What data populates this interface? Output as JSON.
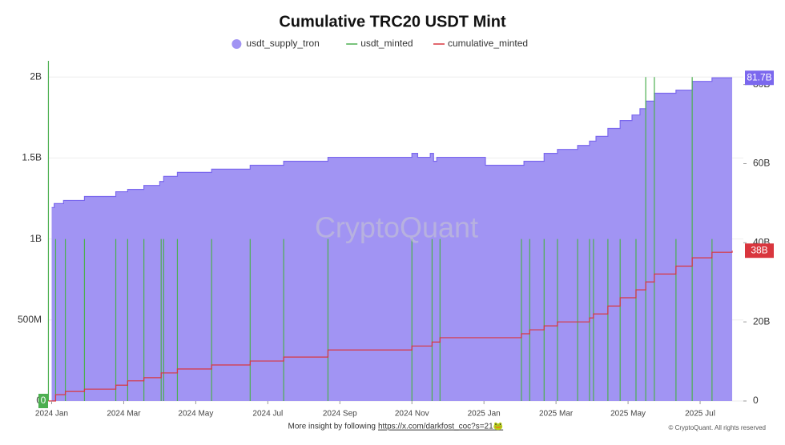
{
  "chart_data": {
    "type": "line",
    "title": "Cumulative TRC20 USDT Mint",
    "watermark": "CryptoQuant",
    "footer_text": "More insight by following",
    "footer_link": "https://x.com/darkfost_coc?s=21🐸",
    "copyright": "© CryptoQuant. All rights reserved",
    "step": "after",
    "grid": true,
    "xlim": [
      -0.1,
      19.2
    ],
    "xticks": [
      {
        "value": 0,
        "label": "2024 Jan"
      },
      {
        "value": 2,
        "label": "2024 Mar"
      },
      {
        "value": 4,
        "label": "2024 May"
      },
      {
        "value": 6,
        "label": "2024 Jul"
      },
      {
        "value": 8,
        "label": "2024 Sep"
      },
      {
        "value": 10,
        "label": "2024 Nov"
      },
      {
        "value": 12,
        "label": "2025 Jan"
      },
      {
        "value": 14,
        "label": "2025 Mar"
      },
      {
        "value": 16,
        "label": "2025 May"
      },
      {
        "value": 18,
        "label": "2025 Jul"
      }
    ],
    "ylim": [
      0,
      2.1
    ],
    "yticks": [
      0,
      {
        "value": 0.5,
        "label": "500M"
      },
      {
        "value": 1,
        "label": "1B"
      },
      {
        "value": 1.5,
        "label": "1.5B"
      },
      {
        "value": 2,
        "label": "2B"
      }
    ],
    "y2lim": [
      0,
      86
    ],
    "y2ticks": [
      0,
      {
        "value": 20,
        "label": "20B"
      },
      {
        "value": 40,
        "label": "40B"
      },
      {
        "value": 60,
        "label": "60B"
      },
      {
        "value": 80,
        "label": "80B"
      }
    ],
    "series": [
      {
        "name": "usdt_supply_tron",
        "color": "#7b68ee",
        "fill": "#a194f3",
        "axis": "y2",
        "x": [
          0,
          0.07,
          0.33,
          0.91,
          1.78,
          2.11,
          2.56,
          3.0,
          3.11,
          3.49,
          4.44,
          5.51,
          6.44,
          7.67,
          10.0,
          10.16,
          10.51,
          10.6,
          10.69,
          12.04,
          13.11,
          13.67,
          14.04,
          14.6,
          14.93,
          15.11,
          15.44,
          15.78,
          16.11,
          16.33,
          16.49,
          16.73,
          17.33,
          17.78,
          18.33,
          18.89
        ],
        "values": [
          48.9,
          49.9,
          50.7,
          51.7,
          52.9,
          53.5,
          54.5,
          55.5,
          56.8,
          57.8,
          58.6,
          59.6,
          60.6,
          61.6,
          62.6,
          61.6,
          62.6,
          60.6,
          61.6,
          59.6,
          60.6,
          62.6,
          63.6,
          64.6,
          65.7,
          66.9,
          68.9,
          70.9,
          72.3,
          73.9,
          75.8,
          77.8,
          78.6,
          80.8,
          81.7,
          81.7
        ],
        "last_label": {
          "value": 81.7,
          "label": "81.7B"
        }
      },
      {
        "name": "usdt_minted",
        "color": "#4caf50",
        "x": [
          -0.09,
          0.11,
          0.38,
          0.91,
          1.78,
          2.11,
          2.56,
          3.04,
          3.11,
          3.49,
          4.44,
          5.51,
          6.44,
          7.67,
          10.0,
          10.56,
          10.78,
          13.04,
          13.27,
          13.67,
          14.04,
          14.6,
          14.93,
          15.04,
          15.44,
          15.78,
          16.22,
          16.49,
          16.73,
          17.33,
          17.78,
          18.33
        ],
        "values": [
          2.1,
          1,
          1,
          1,
          1,
          1,
          1,
          1,
          1,
          1,
          1,
          1,
          1,
          1,
          1,
          1,
          1,
          1,
          1,
          1,
          1,
          1,
          1,
          1,
          1,
          1,
          1,
          2,
          2,
          1,
          2,
          1
        ],
        "last_label": {
          "value": 0,
          "label": "0"
        }
      },
      {
        "name": "cumulative_minted",
        "color": "#d9363e",
        "axis": "y2",
        "x": [
          -0.09,
          0.11,
          0.38,
          0.91,
          1.78,
          2.11,
          2.56,
          3.04,
          3.49,
          4.44,
          5.51,
          6.44,
          7.67,
          10.0,
          10.56,
          10.78,
          13.04,
          13.27,
          13.67,
          14.04,
          14.93,
          15.04,
          15.44,
          15.78,
          16.22,
          16.49,
          16.73,
          17.33,
          17.78,
          18.33,
          18.89
        ],
        "values": [
          0,
          1.6,
          2.4,
          3.0,
          4.0,
          5.1,
          5.9,
          7.1,
          8.1,
          9.1,
          10.1,
          11.1,
          12.9,
          13.9,
          14.9,
          16.0,
          17.0,
          18.0,
          19.0,
          20.0,
          21.0,
          22.0,
          24.0,
          26.1,
          28.1,
          30.1,
          32.1,
          34.1,
          36.2,
          37.6,
          38.0
        ],
        "last_label": {
          "value": 38,
          "label": "38B"
        }
      }
    ]
  }
}
